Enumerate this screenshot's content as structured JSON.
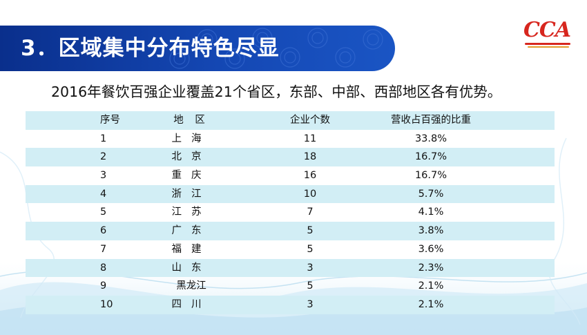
{
  "slide": {
    "title": "3．区域集中分布特色尽显",
    "logo_text": "CCA",
    "subtitle": "2016年餐饮百强企业覆盖21个省区，东部、中部、西部地区各有优势。"
  },
  "table": {
    "headers": {
      "seq": "序号",
      "region": "地 区",
      "count": "企业个数",
      "share": "营收占百强的比重"
    },
    "rows": [
      {
        "seq": "1",
        "region": "上海",
        "count": "11",
        "share": "33.8%"
      },
      {
        "seq": "2",
        "region": "北京",
        "count": "18",
        "share": "16.7%"
      },
      {
        "seq": "3",
        "region": "重庆",
        "count": "16",
        "share": "16.7%"
      },
      {
        "seq": "4",
        "region": "浙江",
        "count": "10",
        "share": "5.7%"
      },
      {
        "seq": "5",
        "region": "江苏",
        "count": "7",
        "share": "4.1%"
      },
      {
        "seq": "6",
        "region": "广东",
        "count": "5",
        "share": "3.8%"
      },
      {
        "seq": "7",
        "region": "福建",
        "count": "5",
        "share": "3.6%"
      },
      {
        "seq": "8",
        "region": "山东",
        "count": "3",
        "share": "2.3%"
      },
      {
        "seq": "9",
        "region": "黑龙江",
        "count": "5",
        "share": "2.1%"
      },
      {
        "seq": "10",
        "region": "四川",
        "count": "3",
        "share": "2.1%"
      }
    ]
  },
  "colors": {
    "banner": "#1447b3",
    "row_shade": "#d2eef5",
    "logo_red": "#d7261e"
  }
}
